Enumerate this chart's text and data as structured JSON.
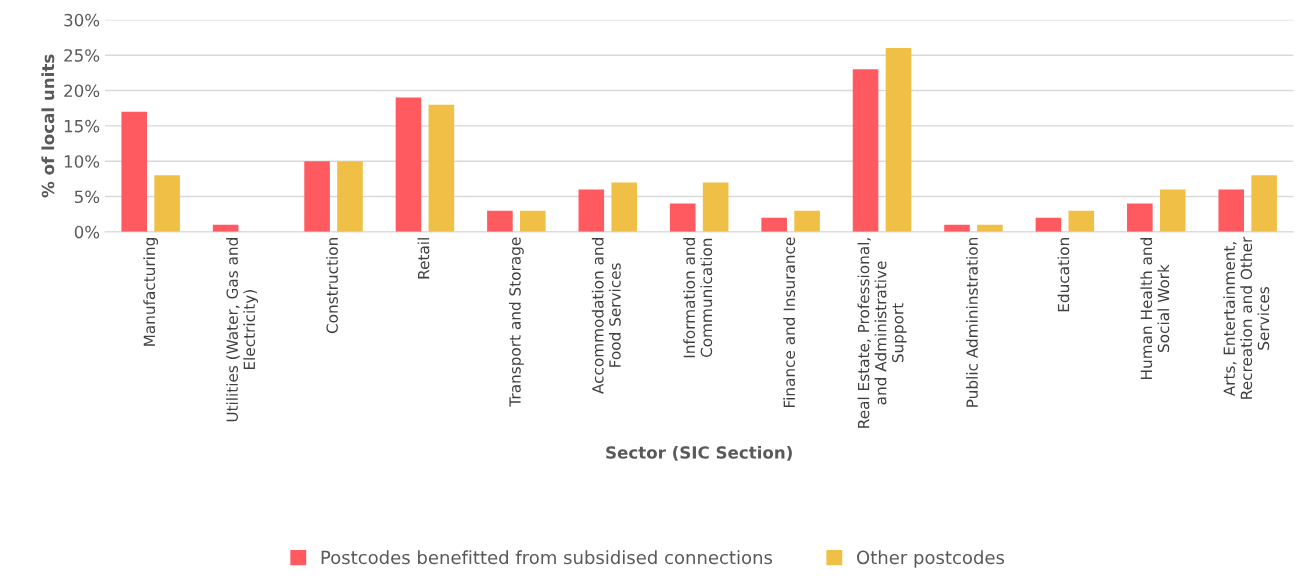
{
  "chart_data": {
    "type": "bar",
    "xlabel": "Sector (SIC Section)",
    "ylabel": "% of local units",
    "categories": [
      "Manufacturing",
      "Utilities (Water, Gas and\nElectricity)",
      "Construction",
      "Retail",
      "Transport and Storage",
      "Accommodation and\nFood Services",
      "Information and\nCommunication",
      "Finance and Insurance",
      "Real Estate, Professional,\nand Administrative\nSupport",
      "Public Admininstration",
      "Education",
      "Human Health and\nSocial Work",
      "Arts, Entertainment,\nRecreation and Other\nServices"
    ],
    "series": [
      {
        "name": "Postcodes benefitted from subsidised connections",
        "color": "#ff5a5f",
        "values": [
          17,
          1,
          10,
          19,
          3,
          6,
          4,
          2,
          23,
          1,
          2,
          4,
          6
        ]
      },
      {
        "name": "Other postcodes",
        "color": "#f0bf45",
        "values": [
          8,
          0,
          10,
          18,
          3,
          7,
          7,
          3,
          26,
          1,
          3,
          6,
          8
        ]
      }
    ],
    "ylim": [
      0,
      30
    ],
    "yticks": [
      {
        "value": 0,
        "label": "0%"
      },
      {
        "value": 5,
        "label": "5%"
      },
      {
        "value": 10,
        "label": "10%"
      },
      {
        "value": 15,
        "label": "15%"
      },
      {
        "value": 20,
        "label": "20%"
      },
      {
        "value": 25,
        "label": "25%"
      },
      {
        "value": 30,
        "label": "30%"
      }
    ],
    "grid": "y",
    "legend": "bottom"
  }
}
